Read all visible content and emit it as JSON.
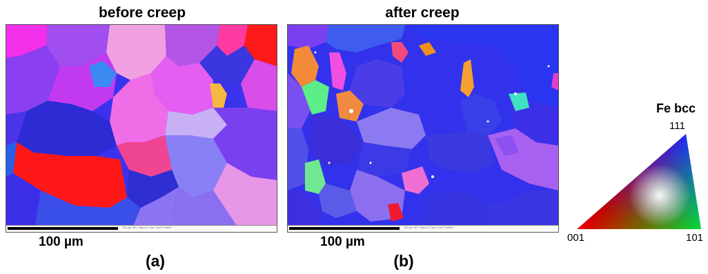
{
  "panels": [
    {
      "title": "before creep",
      "scale": "100 µm",
      "label": "(a)",
      "meta": "100 µm; BC; Step=0.2 µm; Grid774x604"
    },
    {
      "title": "after creep",
      "scale": "100 µm",
      "label": "(b)",
      "meta": "100 µm; BC; Step=0.2 µm; Grid774x604"
    }
  ],
  "legend": {
    "title": "Fe bcc",
    "corners": {
      "c001": "001",
      "c101": "101",
      "c111": "111"
    },
    "colors": {
      "c001": "#ff0000",
      "c101": "#00dd00",
      "c111": "#0000ff"
    }
  }
}
